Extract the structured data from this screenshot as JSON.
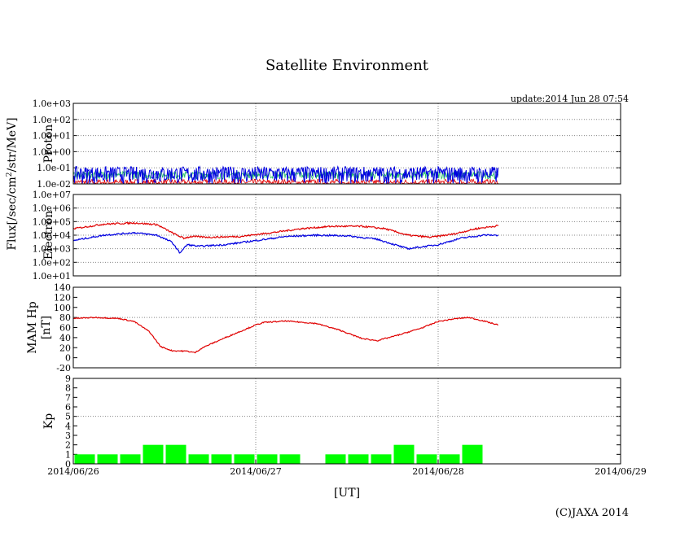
{
  "title": "Satellite Environment",
  "update": "update:2014 Jun 28 07:54",
  "copyright": "(C)JAXA 2014",
  "flux_label_pre": "Flux[/sec/cm",
  "flux_label_sup": "2",
  "flux_label_post": "/str/MeV]",
  "colors": {
    "red": "#e00000",
    "blue": "#0000e0",
    "green": "#20c060",
    "kp_bar": "#00ff00"
  },
  "chart_data": [
    {
      "type": "line",
      "panel": "proton",
      "ylabel": "Proton",
      "log_scale": true,
      "ylim": [
        0.01,
        1000
      ],
      "yticks": [
        "1.0e-02",
        "1.0e-01",
        "1.0e+00",
        "1.0e+01",
        "1.0e+02",
        "1.0e+03"
      ],
      "xlim": [
        "2014-06-26T00:00",
        "2014-06-29T00:00"
      ],
      "data_end": "2014-06-28T07:54",
      "grid": "dotted",
      "series": [
        {
          "color": "blue",
          "typical_value": 0.05,
          "min_value": 0.01,
          "max_value": 0.12
        },
        {
          "color": "green",
          "typical_value": 0.04,
          "min_value": 0.02,
          "max_value": 0.06
        },
        {
          "color": "red",
          "typical_value": 0.012,
          "min_value": 0.01,
          "max_value": 0.02
        }
      ]
    },
    {
      "type": "line",
      "panel": "electron",
      "ylabel": "Electron",
      "log_scale": true,
      "ylim": [
        10,
        10000000
      ],
      "yticks": [
        "1.0e+01",
        "1.0e+02",
        "1.0e+03",
        "1.0e+04",
        "1.0e+05",
        "1.0e+06",
        "1.0e+07"
      ],
      "xlim": [
        "2014-06-26T00:00",
        "2014-06-29T00:00"
      ],
      "grid": "dotted",
      "series": [
        {
          "color": "red",
          "x": [
            "2014-06-26T00:00",
            "2014-06-26T04:00",
            "2014-06-26T08:00",
            "2014-06-26T11:00",
            "2014-06-26T13:00",
            "2014-06-26T14:30",
            "2014-06-26T15:30",
            "2014-06-26T18:00",
            "2014-06-26T22:00",
            "2014-06-27T02:00",
            "2014-06-27T06:00",
            "2014-06-27T10:00",
            "2014-06-27T14:00",
            "2014-06-27T17:00",
            "2014-06-27T20:00",
            "2014-06-27T23:00",
            "2014-06-28T02:00",
            "2014-06-28T05:00",
            "2014-06-28T07:54"
          ],
          "y": [
            30000,
            65000,
            80000,
            60000,
            15000,
            6000,
            8000,
            7000,
            8000,
            15000,
            30000,
            45000,
            45000,
            30000,
            10000,
            7000,
            12000,
            30000,
            50000
          ]
        },
        {
          "color": "blue",
          "x": [
            "2014-06-26T00:00",
            "2014-06-26T04:00",
            "2014-06-26T08:00",
            "2014-06-26T11:00",
            "2014-06-26T13:00",
            "2014-06-26T14:00",
            "2014-06-26T15:00",
            "2014-06-26T16:30",
            "2014-06-26T20:00",
            "2014-06-27T00:00",
            "2014-06-27T04:00",
            "2014-06-27T08:00",
            "2014-06-27T12:00",
            "2014-06-27T16:00",
            "2014-06-27T20:00",
            "2014-06-28T00:00",
            "2014-06-28T03:00",
            "2014-06-28T06:00",
            "2014-06-28T07:54"
          ],
          "y": [
            4000,
            10000,
            15000,
            10000,
            3000,
            500,
            2000,
            1500,
            2000,
            4000,
            8000,
            10000,
            9000,
            5000,
            1000,
            2000,
            6000,
            10000,
            10000
          ]
        }
      ]
    },
    {
      "type": "line",
      "panel": "mam",
      "ylabel": "MAM Hp",
      "ylabel2": "[nT]",
      "ylim": [
        -20,
        140
      ],
      "yticks": [
        "-20",
        "0",
        "20",
        "40",
        "60",
        "80",
        "100",
        "120",
        "140"
      ],
      "xlim": [
        "2014-06-26T00:00",
        "2014-06-29T00:00"
      ],
      "grid": "dotted",
      "series": [
        {
          "color": "red",
          "x": [
            "2014-06-26T00:00",
            "2014-06-26T03:00",
            "2014-06-26T06:00",
            "2014-06-26T08:00",
            "2014-06-26T10:00",
            "2014-06-26T11:30",
            "2014-06-26T13:00",
            "2014-06-26T15:00",
            "2014-06-26T16:00",
            "2014-06-26T17:00",
            "2014-06-26T20:00",
            "2014-06-27T00:00",
            "2014-06-27T01:00",
            "2014-06-27T04:00",
            "2014-06-27T08:00",
            "2014-06-27T11:00",
            "2014-06-27T14:00",
            "2014-06-27T16:00",
            "2014-06-27T19:00",
            "2014-06-27T22:00",
            "2014-06-28T00:00",
            "2014-06-28T02:00",
            "2014-06-28T04:00",
            "2014-06-28T06:00",
            "2014-06-28T07:54"
          ],
          "y": [
            78,
            80,
            78,
            72,
            52,
            22,
            14,
            13,
            10,
            20,
            40,
            65,
            70,
            73,
            68,
            55,
            38,
            34,
            46,
            60,
            72,
            77,
            80,
            73,
            65
          ]
        }
      ]
    },
    {
      "type": "bar",
      "panel": "kp",
      "ylabel": "Kp",
      "ylim": [
        0,
        9
      ],
      "yticks": [
        "0",
        "1",
        "2",
        "3",
        "4",
        "5",
        "6",
        "7",
        "8",
        "9"
      ],
      "xlim": [
        "2014-06-26T00:00",
        "2014-06-29T00:00"
      ],
      "bin_hours": 3,
      "categories": [
        "2014-06-26T00",
        "2014-06-26T03",
        "2014-06-26T06",
        "2014-06-26T09",
        "2014-06-26T12",
        "2014-06-26T15",
        "2014-06-26T18",
        "2014-06-26T21",
        "2014-06-27T00",
        "2014-06-27T03",
        "2014-06-27T06",
        "2014-06-27T09",
        "2014-06-27T12",
        "2014-06-27T15",
        "2014-06-27T18",
        "2014-06-27T21",
        "2014-06-28T00",
        "2014-06-28T03",
        "2014-06-28T06"
      ],
      "values": [
        1,
        1,
        1,
        2,
        2,
        1,
        1,
        1,
        1,
        1,
        0,
        1,
        1,
        1,
        2,
        1,
        1,
        2,
        0
      ],
      "hline": 5,
      "xticks": [
        "2014/06/26",
        "2014/06/27",
        "2014/06/28",
        "2014/06/29"
      ],
      "xlabel": "[UT]"
    }
  ]
}
